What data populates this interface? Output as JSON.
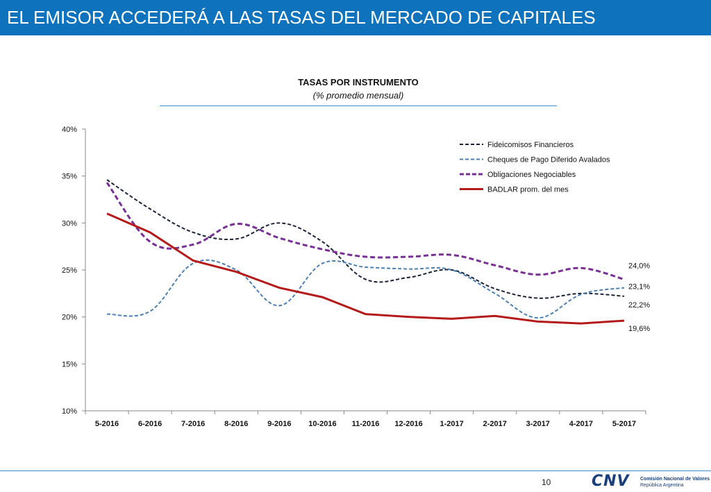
{
  "header": {
    "title": "EL EMISOR ACCEDERÁ A LAS TASAS DEL MERCADO DE CAPITALES"
  },
  "footer": {
    "page_number": "10",
    "logo_mark": "CNV",
    "logo_name": "Comisión Nacional de Valores",
    "logo_country": "República Argentina"
  },
  "colors": {
    "header_bg": "#0f72bd",
    "fideicomisos": "#1a2238",
    "cheques": "#4a7fb5",
    "obligaciones": "#7a2f96",
    "badlar": "#b51a1a"
  },
  "chart_data": {
    "type": "line",
    "title": "TASAS POR INSTRUMENTO",
    "subtitle": "(% promedio mensual)",
    "xlabel": "",
    "ylabel": "",
    "ylim": [
      10,
      40
    ],
    "yticks": [
      "10%",
      "15%",
      "20%",
      "25%",
      "30%",
      "35%",
      "40%"
    ],
    "categories": [
      "5-2016",
      "6-2016",
      "7-2016",
      "8-2016",
      "9-2016",
      "10-2016",
      "11-2016",
      "12-2016",
      "1-2017",
      "2-2017",
      "3-2017",
      "4-2017",
      "5-2017"
    ],
    "legend_position": "top-right",
    "series": [
      {
        "name": "Fideicomisos Financieros",
        "style": "dashed",
        "color_key": "fideicomisos",
        "width": 2,
        "values": [
          34.6,
          31.5,
          29.0,
          28.3,
          30.0,
          28.0,
          24.0,
          24.2,
          25.0,
          23.0,
          22.0,
          22.5,
          22.2
        ],
        "end_label": "22,2%"
      },
      {
        "name": "Cheques de Pago Diferido Avalados",
        "style": "dashed",
        "color_key": "cheques",
        "width": 2,
        "values": [
          20.3,
          20.6,
          25.7,
          25.0,
          21.2,
          25.7,
          25.3,
          25.1,
          25.0,
          22.5,
          19.9,
          22.4,
          23.1
        ],
        "end_label": "23,1%"
      },
      {
        "name": "Obligaciones Negociables",
        "style": "dashed",
        "color_key": "obligaciones",
        "width": 3,
        "values": [
          34.3,
          28.0,
          27.7,
          29.9,
          28.4,
          27.2,
          26.4,
          26.4,
          26.6,
          25.5,
          24.5,
          25.2,
          24.0
        ],
        "end_label": "24,0%"
      },
      {
        "name": "BADLAR prom. del mes",
        "style": "solid",
        "color_key": "badlar",
        "width": 3,
        "values": [
          31.0,
          29.0,
          26.0,
          24.8,
          23.1,
          22.1,
          20.3,
          20.0,
          19.8,
          20.1,
          19.5,
          19.3,
          19.6
        ],
        "end_label": "19,6%"
      }
    ]
  }
}
